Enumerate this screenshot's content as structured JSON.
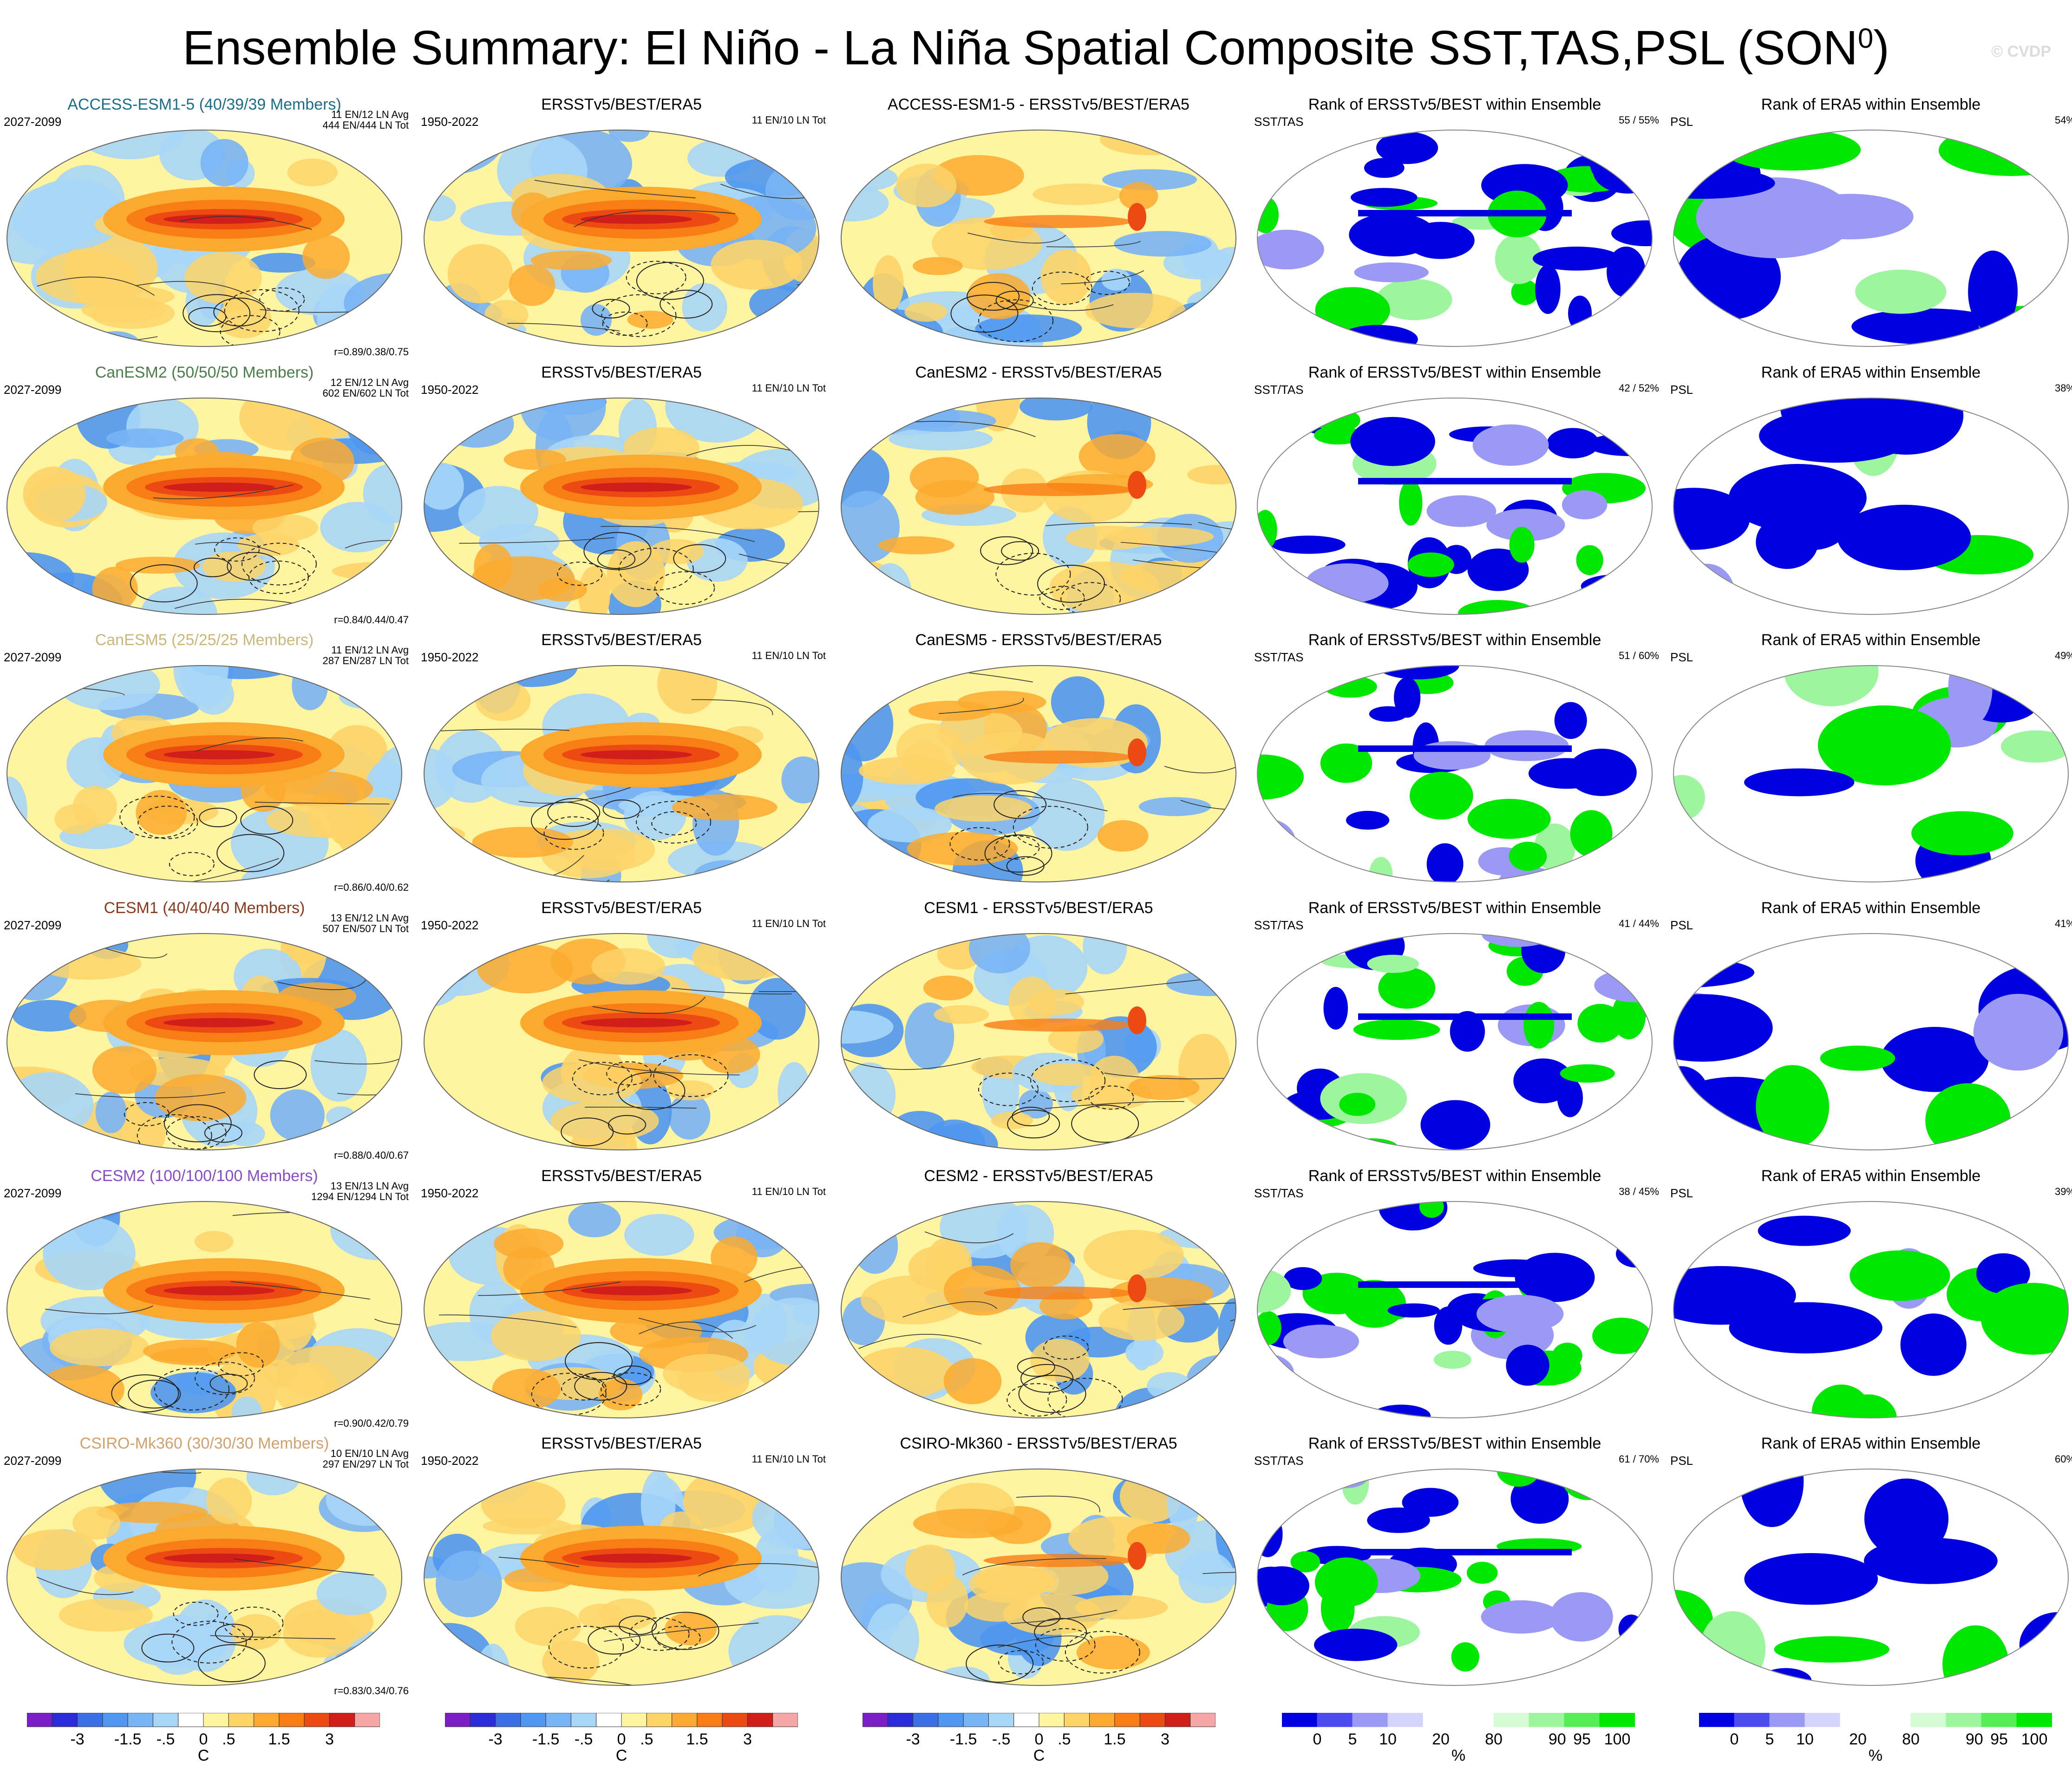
{
  "header": {
    "title": "Ensemble Summary: El Niño - La Niña Spatial Composite SST,TAS,PSL (SON",
    "title_sup": "0",
    "title_close": ")",
    "watermark": "© CVDP"
  },
  "colors": {
    "temp_scale": [
      "#7a1ec8",
      "#2b2bd9",
      "#3c6ee6",
      "#4f97f0",
      "#79b4f5",
      "#a7d6f7",
      "#ffffff",
      "#fff4a0",
      "#fdd468",
      "#fbaa2f",
      "#f77d14",
      "#ec4a12",
      "#d11e1a",
      "#f5a6a6"
    ],
    "rank_scale": [
      "#0000e0",
      "#4b4bf0",
      "#9a9af5",
      "#d4d4fa",
      "#ffffff",
      "#ffffff",
      "#d6fcd6",
      "#9df59d",
      "#55ee55",
      "#00e800"
    ]
  },
  "rows": [
    {
      "model_title": "ACCESS-ESM1-5 (40/39/39 Members)",
      "model_color": "#1a6e8a",
      "model_period": "2027-2099",
      "model_avg": "11 EN/12 LN Avg",
      "model_tot": "444 EN/444 LN Tot",
      "model_corr": "r=0.89/0.38/0.75",
      "obs_title": "ERSSTv5/BEST/ERA5",
      "obs_period": "1950-2022",
      "obs_tot": "11 EN/10 LN Tot",
      "diff_title": "ACCESS-ESM1-5 - ERSSTv5/BEST/ERA5",
      "rank1_title": "Rank of ERSSTv5/BEST within Ensemble",
      "rank1_label": "SST/TAS",
      "rank1_pct": "55 /  55%",
      "rank2_title": "Rank of ERA5 within Ensemble",
      "rank2_label": "PSL",
      "rank2_pct": "54%"
    },
    {
      "model_title": "CanESM2 (50/50/50 Members)",
      "model_color": "#4a7d4a",
      "model_period": "2027-2099",
      "model_avg": "12 EN/12 LN Avg",
      "model_tot": "602 EN/602 LN Tot",
      "model_corr": "r=0.84/0.44/0.47",
      "obs_title": "ERSSTv5/BEST/ERA5",
      "obs_period": "1950-2022",
      "obs_tot": "11 EN/10 LN Tot",
      "diff_title": "CanESM2 - ERSSTv5/BEST/ERA5",
      "rank1_title": "Rank of ERSSTv5/BEST within Ensemble",
      "rank1_label": "SST/TAS",
      "rank1_pct": "42 /  52%",
      "rank2_title": "Rank of ERA5 within Ensemble",
      "rank2_label": "PSL",
      "rank2_pct": "38%"
    },
    {
      "model_title": "CanESM5 (25/25/25 Members)",
      "model_color": "#c9b87a",
      "model_period": "2027-2099",
      "model_avg": "11 EN/12 LN Avg",
      "model_tot": "287 EN/287 LN Tot",
      "model_corr": "r=0.86/0.40/0.62",
      "obs_title": "ERSSTv5/BEST/ERA5",
      "obs_period": "1950-2022",
      "obs_tot": "11 EN/10 LN Tot",
      "diff_title": "CanESM5 - ERSSTv5/BEST/ERA5",
      "rank1_title": "Rank of ERSSTv5/BEST within Ensemble",
      "rank1_label": "SST/TAS",
      "rank1_pct": "51 /  60%",
      "rank2_title": "Rank of ERA5 within Ensemble",
      "rank2_label": "PSL",
      "rank2_pct": "49%"
    },
    {
      "model_title": "CESM1 (40/40/40 Members)",
      "model_color": "#8a3a1a",
      "model_period": "2027-2099",
      "model_avg": "13 EN/12 LN Avg",
      "model_tot": "507 EN/507 LN Tot",
      "model_corr": "r=0.88/0.40/0.67",
      "obs_title": "ERSSTv5/BEST/ERA5",
      "obs_period": "1950-2022",
      "obs_tot": "11 EN/10 LN Tot",
      "diff_title": "CESM1 - ERSSTv5/BEST/ERA5",
      "rank1_title": "Rank of ERSSTv5/BEST within Ensemble",
      "rank1_label": "SST/TAS",
      "rank1_pct": "41 /  44%",
      "rank2_title": "Rank of ERA5 within Ensemble",
      "rank2_label": "PSL",
      "rank2_pct": "41%"
    },
    {
      "model_title": "CESM2 (100/100/100 Members)",
      "model_color": "#8a4ac8",
      "model_period": "2027-2099",
      "model_avg": "13 EN/13 LN Avg",
      "model_tot": "1294 EN/1294 LN Tot",
      "model_corr": "r=0.90/0.42/0.79",
      "obs_title": "ERSSTv5/BEST/ERA5",
      "obs_period": "1950-2022",
      "obs_tot": "11 EN/10 LN Tot",
      "diff_title": "CESM2 - ERSSTv5/BEST/ERA5",
      "rank1_title": "Rank of ERSSTv5/BEST within Ensemble",
      "rank1_label": "SST/TAS",
      "rank1_pct": "38 /  45%",
      "rank2_title": "Rank of ERA5 within Ensemble",
      "rank2_label": "PSL",
      "rank2_pct": "39%"
    },
    {
      "model_title": "CSIRO-Mk360 (30/30/30 Members)",
      "model_color": "#d4a06a",
      "model_period": "2027-2099",
      "model_avg": "10 EN/10 LN Avg",
      "model_tot": "297 EN/297 LN Tot",
      "model_corr": "r=0.83/0.34/0.76",
      "obs_title": "ERSSTv5/BEST/ERA5",
      "obs_period": "1950-2022",
      "obs_tot": "11 EN/10 LN Tot",
      "diff_title": "CSIRO-Mk360 - ERSSTv5/BEST/ERA5",
      "rank1_title": "Rank of ERSSTv5/BEST within Ensemble",
      "rank1_label": "SST/TAS",
      "rank1_pct": "61 /  70%",
      "rank2_title": "Rank of ERA5 within Ensemble",
      "rank2_label": "PSL",
      "rank2_pct": "60%"
    }
  ],
  "colorbars": {
    "temp_ticks": [
      "-3",
      "-1.5",
      "-.5",
      "0",
      ".5",
      "1.5",
      "3"
    ],
    "temp_unit": "C",
    "rank_ticks": [
      "0",
      "5",
      "10",
      "20",
      "80",
      "90",
      "95",
      "100"
    ],
    "rank_unit": "%"
  }
}
